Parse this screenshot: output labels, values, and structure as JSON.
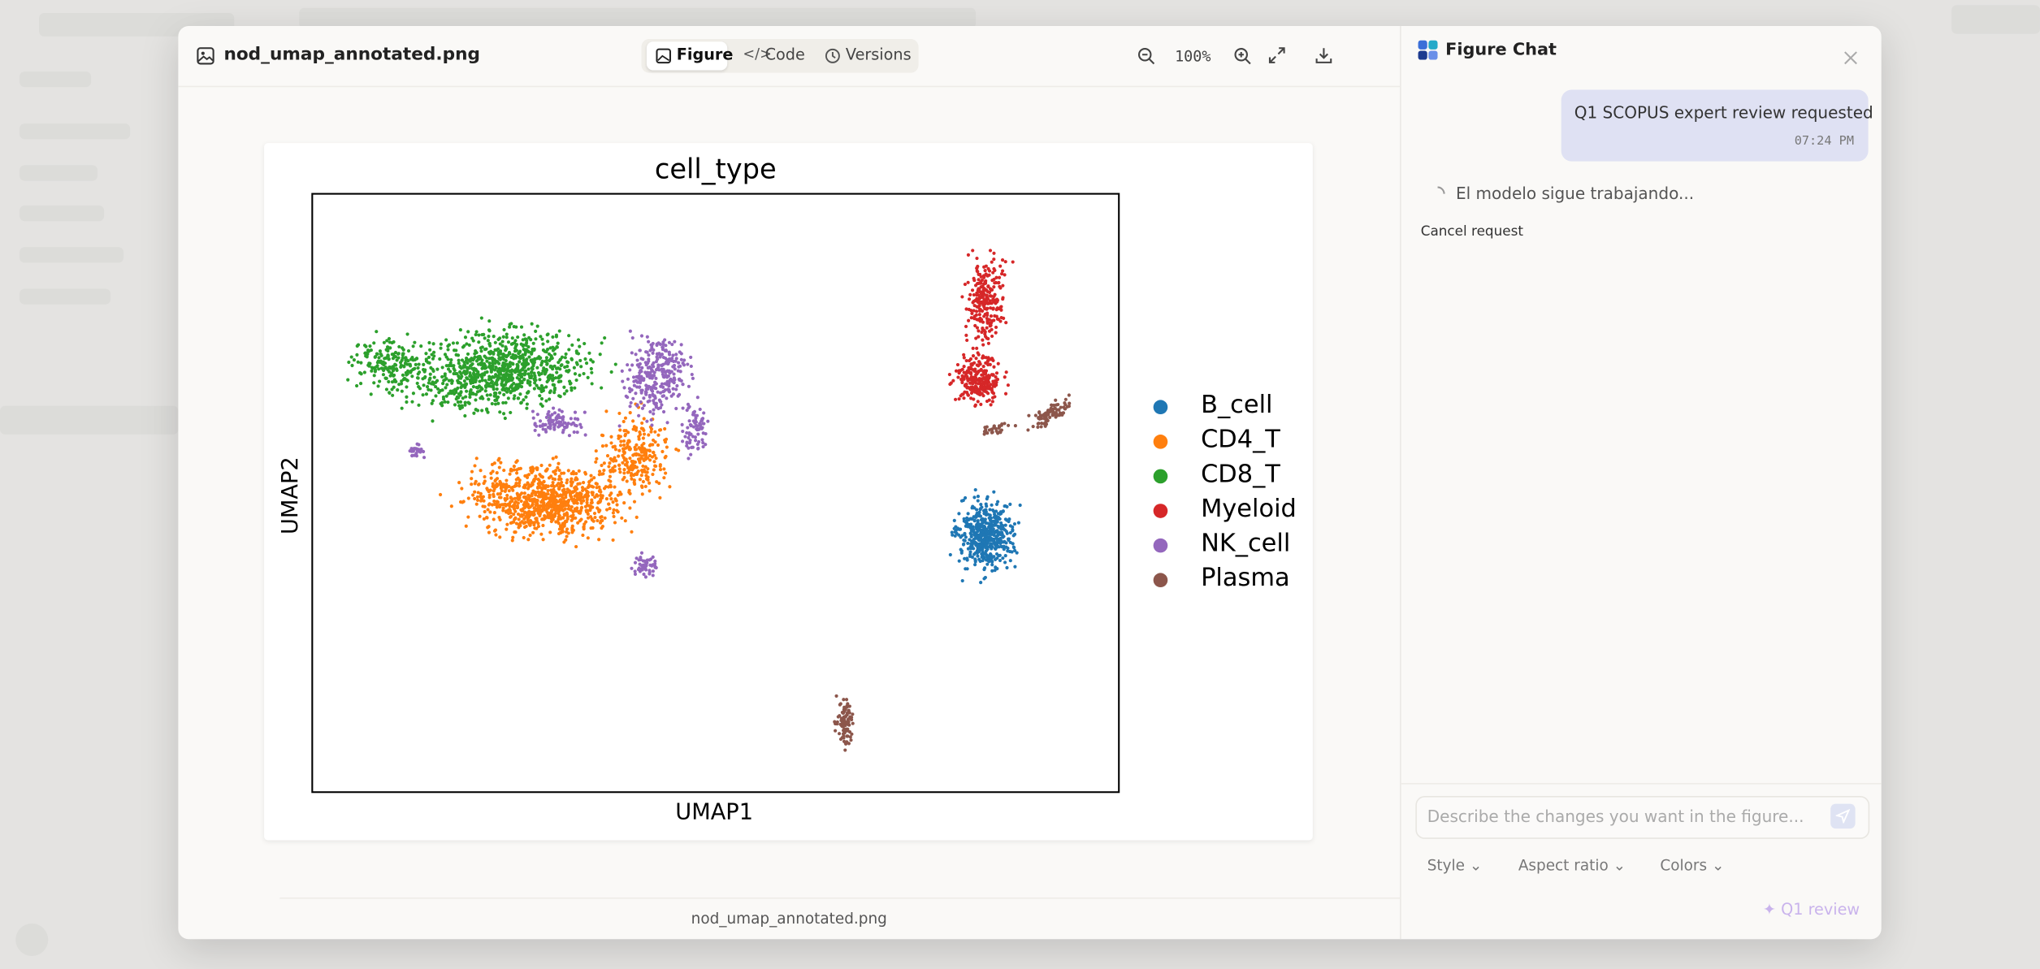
{
  "modal": {
    "filename": "nod_umap_annotated.png",
    "tabs": [
      "Figure",
      "Code",
      "Versions"
    ],
    "zoom": "100%",
    "footer_filename": "nod_umap_annotated.png"
  },
  "figure": {
    "title": "cell_type",
    "x_label": "UMAP1",
    "y_label": "UMAP2",
    "legend": [
      {
        "label": "B_cell",
        "color": "#1f77b4"
      },
      {
        "label": "CD4_T",
        "color": "#ff7f0e"
      },
      {
        "label": "CD8_T",
        "color": "#2ca02c"
      },
      {
        "label": "Myeloid",
        "color": "#d62728"
      },
      {
        "label": "NK_cell",
        "color": "#9467bd"
      },
      {
        "label": "Plasma",
        "color": "#8c564b"
      }
    ]
  },
  "chat": {
    "title": "Figure Chat",
    "messages": [
      {
        "text": "Q1 SCOPUS expert review requested",
        "time": "07:24 PM"
      }
    ],
    "status": "El modelo sigue trabajando...",
    "cancel": "Cancel request",
    "input_placeholder": "Describe the changes you want in the figure...",
    "options": [
      "Style",
      "Aspect ratio",
      "Colors"
    ],
    "review_button": "Q1 review"
  }
}
